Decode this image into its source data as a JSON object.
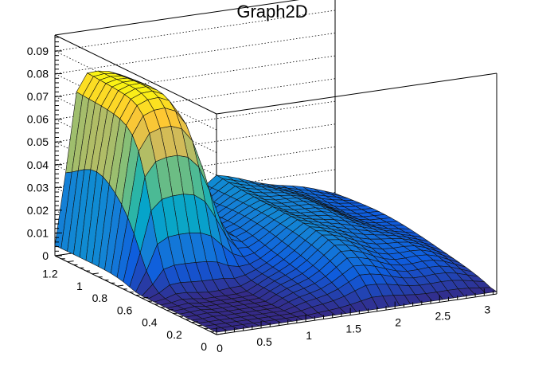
{
  "chart_data": {
    "type": "surface",
    "title": "Graph2D",
    "xlabel": "",
    "ylabel": "",
    "zlabel": "",
    "x_range": [
      0,
      3.14
    ],
    "y_range": [
      0,
      1.3
    ],
    "z_range": [
      0,
      0.097
    ],
    "x_ticks": [
      "0",
      "0.5",
      "1",
      "1.5",
      "2",
      "2.5",
      "3"
    ],
    "x_tick_values": [
      0,
      0.5,
      1,
      1.5,
      2,
      2.5,
      3
    ],
    "y_ticks": [
      "0",
      "0.2",
      "0.4",
      "0.6",
      "0.8",
      "1",
      "1.2"
    ],
    "y_tick_values": [
      0,
      0.2,
      0.4,
      0.6,
      0.8,
      1.0,
      1.2
    ],
    "z_ticks": [
      "0",
      "0.01",
      "0.02",
      "0.03",
      "0.04",
      "0.05",
      "0.06",
      "0.07",
      "0.08",
      "0.09"
    ],
    "z_tick_values": [
      0,
      0.01,
      0.02,
      0.03,
      0.04,
      0.05,
      0.06,
      0.07,
      0.08,
      0.09
    ],
    "grid": true,
    "colormap": [
      "#352a87",
      "#0f5cdd",
      "#1481d6",
      "#06a4ca",
      "#2eb7a4",
      "#87bf77",
      "#d1bb59",
      "#fec832",
      "#f9fb0e"
    ],
    "mesh": {
      "nx": 26,
      "ny": 26
    },
    "surface_model": "peak height 0.079 at x in [0.2, 1.0], y in [0.7, 1.3]; falls to about 0.005 at x = 0; sheet near 0.025 at x = 1.8 falling to 0.01 at x = 3; minimum about 0.001 along y = 0"
  }
}
